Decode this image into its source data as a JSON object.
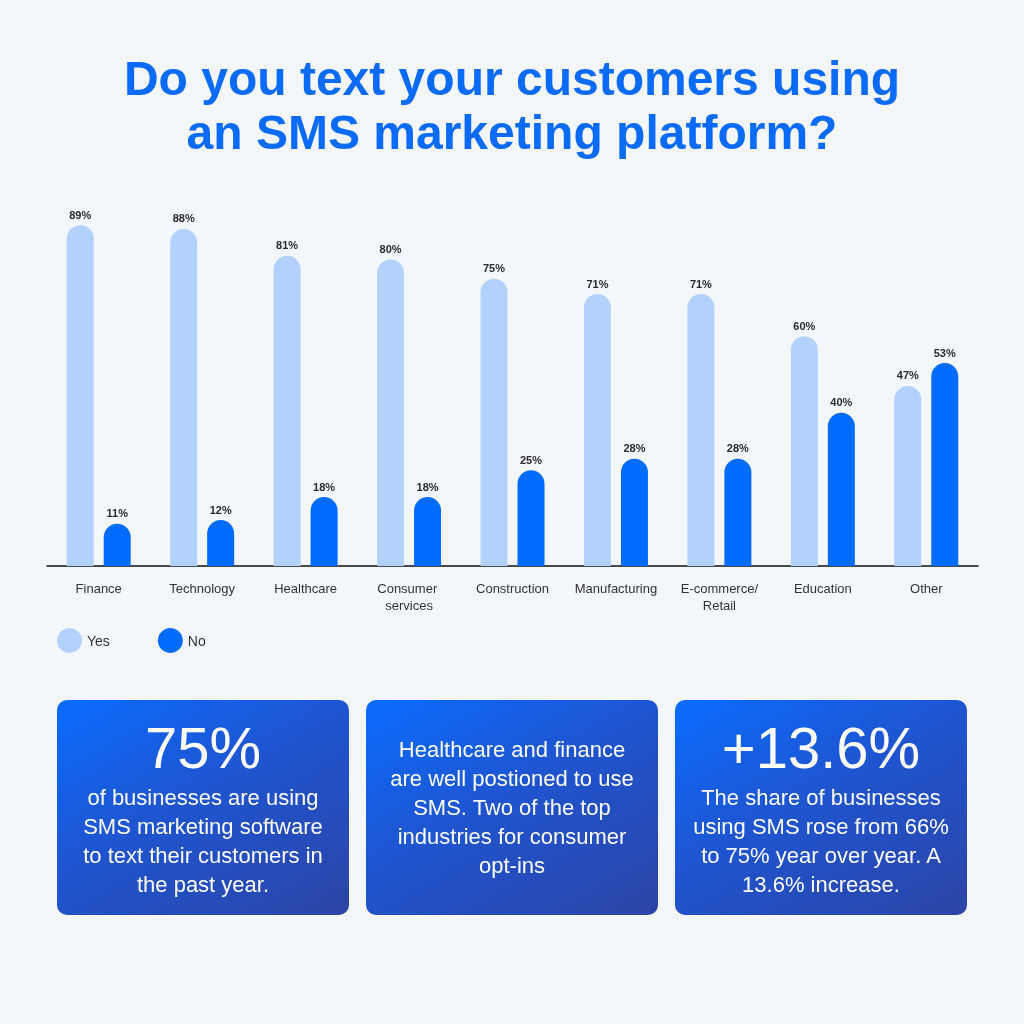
{
  "chart_data": [
    {
      "type": "bar",
      "title": "Do you text your customers using an SMS marketing platform?",
      "categories": [
        "Finance",
        "Technology",
        "Healthcare",
        "Consumer services",
        "Construction",
        "Manufacturing",
        "E-commerce/Retail",
        "Education",
        "Other"
      ],
      "series": [
        {
          "name": "Yes",
          "color": "#b3d1ff",
          "values": [
            89,
            88,
            81,
            80,
            75,
            71,
            71,
            60,
            47
          ],
          "value_labels": [
            "89%",
            "88%",
            "81%",
            "80%",
            "75%",
            "71%",
            "71%",
            "60%",
            "47%"
          ]
        },
        {
          "name": "No",
          "color": "#006bff",
          "values": [
            11,
            12,
            18,
            18,
            25,
            28,
            28,
            40,
            53
          ],
          "value_labels": [
            "11%",
            "12%",
            "18%",
            "18%",
            "25%",
            "28%",
            "28%",
            "40%",
            "53%"
          ]
        }
      ],
      "legend": "bottom left",
      "tick_labels": "x"
    },
    {
      "type": "other",
      "title": "75%",
      "annotations": [
        "of businesses are using SMS marketing software to text their customers in the past year."
      ]
    },
    {
      "type": "other",
      "annotations": [
        "Healthcare and finance are well postioned to use SMS. Two of the top industries for consumer opt-ins"
      ]
    },
    {
      "type": "other",
      "title": "+13.6%",
      "annotations": [
        "The share of businesses using SMS rose from 66% to 75% year over year. A 13.6% increase."
      ]
    }
  ]
}
